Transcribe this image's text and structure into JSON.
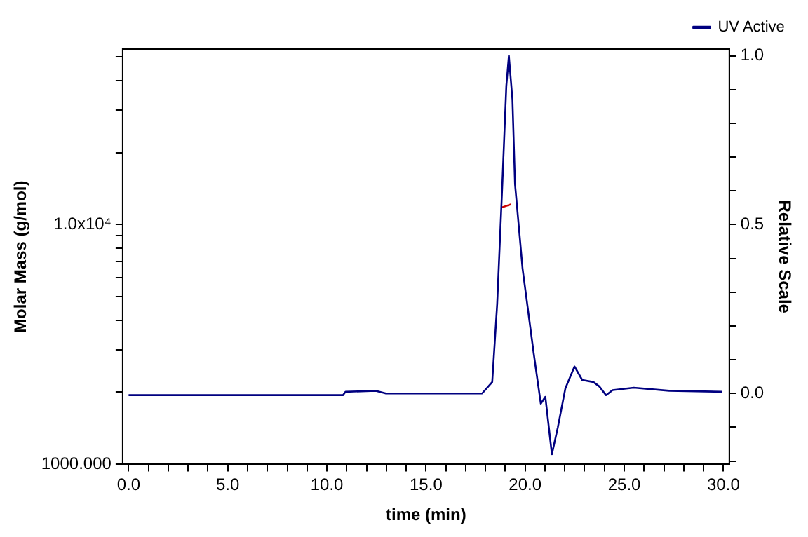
{
  "chart_data": {
    "type": "line",
    "xlabel": "time (min)",
    "ylabel": "Molar Mass (g/mol)",
    "y2label": "Relative Scale",
    "log": "y",
    "marker": "none",
    "grid": false,
    "legend": "top right",
    "xlim": [
      -0.3,
      30.3
    ],
    "xticks": [
      {
        "value": 0,
        "label": "0.0"
      },
      {
        "value": 1,
        "label": null
      },
      {
        "value": 2,
        "label": null
      },
      {
        "value": 3,
        "label": null
      },
      {
        "value": 4,
        "label": null
      },
      {
        "value": 5,
        "label": "5.0"
      },
      {
        "value": 6,
        "label": null
      },
      {
        "value": 7,
        "label": null
      },
      {
        "value": 8,
        "label": null
      },
      {
        "value": 9,
        "label": null
      },
      {
        "value": 10,
        "label": "10.0"
      },
      {
        "value": 11,
        "label": null
      },
      {
        "value": 12,
        "label": null
      },
      {
        "value": 13,
        "label": null
      },
      {
        "value": 14,
        "label": null
      },
      {
        "value": 15,
        "label": "15.0"
      },
      {
        "value": 16,
        "label": null
      },
      {
        "value": 17,
        "label": null
      },
      {
        "value": 18,
        "label": null
      },
      {
        "value": 19,
        "label": null
      },
      {
        "value": 20,
        "label": "20.0"
      },
      {
        "value": 21,
        "label": null
      },
      {
        "value": 22,
        "label": null
      },
      {
        "value": 23,
        "label": null
      },
      {
        "value": 24,
        "label": null
      },
      {
        "value": 25,
        "label": "25.0"
      },
      {
        "value": 26,
        "label": null
      },
      {
        "value": 27,
        "label": null
      },
      {
        "value": 28,
        "label": null
      },
      {
        "value": 29,
        "label": null
      },
      {
        "value": 30,
        "label": "30.0"
      }
    ],
    "ylim": [
      1000,
      54000
    ],
    "yticks": [
      {
        "value": 1000,
        "label": "1000.000"
      },
      {
        "value": 2000,
        "label": null
      },
      {
        "value": 3000,
        "label": null
      },
      {
        "value": 4000,
        "label": null
      },
      {
        "value": 5000,
        "label": null
      },
      {
        "value": 6000,
        "label": null
      },
      {
        "value": 7000,
        "label": null
      },
      {
        "value": 8000,
        "label": null
      },
      {
        "value": 9000,
        "label": null
      },
      {
        "value": 10000,
        "label": "1.0x10⁴"
      },
      {
        "value": 20000,
        "label": null
      },
      {
        "value": 30000,
        "label": null
      },
      {
        "value": 40000,
        "label": null
      },
      {
        "value": 50000,
        "label": null
      }
    ],
    "y2lim": [
      -0.21,
      1.02
    ],
    "y2ticks": [
      {
        "value": -0.2,
        "label": null
      },
      {
        "value": -0.1,
        "label": null
      },
      {
        "value": 0,
        "label": "0.0"
      },
      {
        "value": 0.1,
        "label": null
      },
      {
        "value": 0.2,
        "label": null
      },
      {
        "value": 0.3,
        "label": null
      },
      {
        "value": 0.4,
        "label": null
      },
      {
        "value": 0.5,
        "label": "0.5"
      },
      {
        "value": 0.6,
        "label": null
      },
      {
        "value": 0.7,
        "label": null
      },
      {
        "value": 0.8,
        "label": null
      },
      {
        "value": 0.9,
        "label": null
      },
      {
        "value": 1,
        "label": "1.0"
      }
    ],
    "series": [
      {
        "name": "UV Active",
        "color": "#000080",
        "axis": "y2",
        "x": [
          0,
          10.81,
          10.94,
          12.47,
          12.98,
          17.5,
          17.83,
          18.34,
          18.59,
          18.85,
          19.05,
          19.18,
          19.36,
          19.49,
          19.87,
          20.43,
          20.79,
          21.02,
          21.35,
          21.65,
          22.03,
          22.49,
          22.88,
          23.44,
          23.74,
          24.08,
          24.41,
          25.48,
          27.26,
          29.94
        ],
        "values": [
          -0.005,
          -0.005,
          0.005,
          0.008,
          0,
          0,
          0,
          0.034,
          0.265,
          0.62,
          0.91,
          1.0,
          0.87,
          0.62,
          0.37,
          0.12,
          -0.03,
          -0.01,
          -0.18,
          -0.1,
          0.015,
          0.08,
          0.04,
          0.034,
          0.021,
          -0.005,
          0.01,
          0.017,
          0.008,
          0.005
        ]
      },
      {
        "color": "#cc0000",
        "x": [
          18.82,
          19.28
        ],
        "values": [
          11800,
          12150
        ]
      }
    ]
  }
}
